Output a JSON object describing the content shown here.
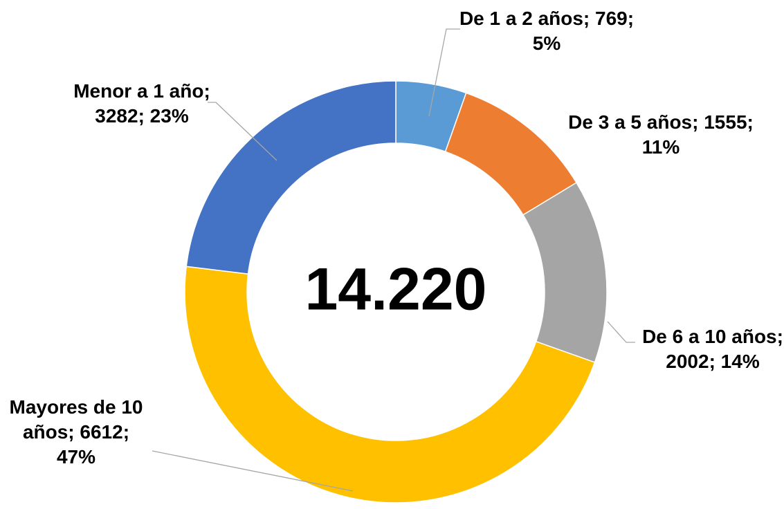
{
  "chart_data": {
    "type": "donut",
    "categories": [
      "De 1 a 2 años",
      "De 3 a 5 años",
      "De 6 a 10 años",
      "Mayores de 10 años",
      "Menor a 1 año"
    ],
    "values": [
      769,
      1555,
      2002,
      6612,
      3282
    ],
    "value_labels": [
      "De 1 a 2 años; 769; 5%",
      "De 3 a 5 años; 1555; 11%",
      "De 6 a 10 años; 2002; 14%",
      "Mayores de 10 años; 6612; 47%",
      "Menor a 1 año; 3282; 23%"
    ],
    "colors": [
      "#5b9bd5",
      "#ed7d31",
      "#a5a5a5",
      "#ffc000",
      "#4472c4"
    ],
    "center_label": "14.220"
  }
}
